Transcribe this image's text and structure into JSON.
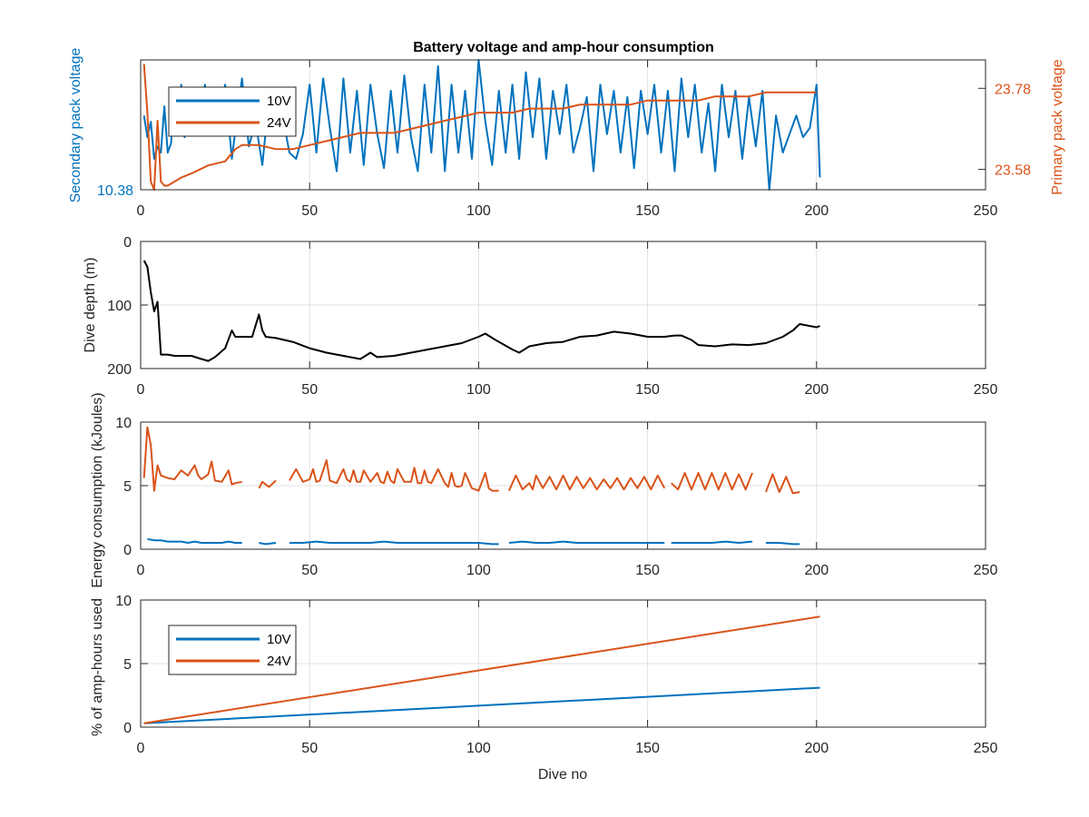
{
  "title": "Battery voltage and amp-hour consumption",
  "colors": {
    "series_10v": "#0072bd",
    "series_24v": "#d95319",
    "depth": "#000000",
    "axes": "#262626",
    "grid": "#e0e0e0"
  },
  "chart_data": [
    {
      "type": "line",
      "id": "voltage",
      "title": "Battery voltage and amp-hour consumption",
      "xlabel": "",
      "ylabel": "Secondary pack voltage",
      "ylabel_right": "Primary pack voltage",
      "xlim": [
        0,
        250
      ],
      "xticks": [
        0,
        50,
        100,
        150,
        200,
        250
      ],
      "ylim_left": [
        10.38,
        10.8
      ],
      "yticks_left": [
        10.38
      ],
      "ylim_right": [
        23.53,
        23.85
      ],
      "yticks_right": [
        23.58,
        23.78
      ],
      "grid": true,
      "legend": {
        "position": "top-left",
        "entries": [
          "10V",
          "24V"
        ]
      },
      "series": [
        {
          "name": "10V",
          "axis": "left",
          "color": "#0072bd",
          "x": [
            1,
            2,
            3,
            4,
            5,
            6,
            7,
            8,
            9,
            10,
            11,
            12,
            13,
            14,
            15,
            17,
            19,
            21,
            23,
            25,
            27,
            29,
            30,
            32,
            34,
            36,
            38,
            40,
            42,
            44,
            46,
            48,
            50,
            52,
            54,
            56,
            58,
            60,
            62,
            64,
            66,
            68,
            70,
            72,
            74,
            76,
            78,
            80,
            82,
            84,
            86,
            88,
            90,
            92,
            94,
            96,
            98,
            100,
            102,
            104,
            106,
            108,
            110,
            112,
            114,
            116,
            118,
            120,
            122,
            124,
            126,
            128,
            130,
            132,
            134,
            136,
            138,
            140,
            142,
            144,
            146,
            148,
            150,
            152,
            154,
            156,
            158,
            160,
            162,
            164,
            166,
            168,
            170,
            172,
            174,
            176,
            178,
            180,
            182,
            184,
            186,
            188,
            190,
            192,
            194,
            196,
            198,
            200,
            201
          ],
          "y": [
            10.62,
            10.55,
            10.6,
            10.48,
            10.52,
            10.5,
            10.65,
            10.5,
            10.53,
            10.7,
            10.58,
            10.72,
            10.55,
            10.6,
            10.7,
            10.56,
            10.72,
            10.6,
            10.58,
            10.72,
            10.48,
            10.66,
            10.74,
            10.52,
            10.6,
            10.46,
            10.68,
            10.56,
            10.62,
            10.5,
            10.48,
            10.56,
            10.72,
            10.5,
            10.74,
            10.58,
            10.44,
            10.74,
            10.5,
            10.7,
            10.46,
            10.72,
            10.56,
            10.45,
            10.7,
            10.5,
            10.75,
            10.55,
            10.44,
            10.72,
            10.5,
            10.78,
            10.44,
            10.72,
            10.5,
            10.7,
            10.48,
            10.8,
            10.6,
            10.46,
            10.7,
            10.5,
            10.72,
            10.48,
            10.76,
            10.55,
            10.74,
            10.48,
            10.7,
            10.56,
            10.72,
            10.5,
            10.58,
            10.68,
            10.44,
            10.72,
            10.56,
            10.7,
            10.5,
            10.68,
            10.45,
            10.7,
            10.56,
            10.72,
            10.5,
            10.7,
            10.44,
            10.74,
            10.55,
            10.72,
            10.5,
            10.66,
            10.44,
            10.72,
            10.55,
            10.7,
            10.48,
            10.68,
            10.52,
            10.7,
            10.38,
            10.62,
            10.5,
            10.56,
            10.62,
            10.55,
            10.58,
            10.72,
            10.42
          ]
        },
        {
          "name": "24V",
          "axis": "right",
          "color": "#d95319",
          "x": [
            1,
            2,
            3,
            4,
            5,
            6,
            7,
            8,
            10,
            12,
            15,
            20,
            25,
            28,
            30,
            35,
            40,
            45,
            50,
            55,
            60,
            65,
            70,
            75,
            80,
            85,
            90,
            95,
            100,
            105,
            110,
            115,
            120,
            125,
            130,
            135,
            140,
            145,
            150,
            155,
            160,
            165,
            170,
            175,
            180,
            185,
            190,
            195,
            200
          ],
          "y": [
            23.84,
            23.72,
            23.55,
            23.53,
            23.7,
            23.55,
            23.54,
            23.54,
            23.55,
            23.56,
            23.57,
            23.59,
            23.6,
            23.63,
            23.64,
            23.64,
            23.63,
            23.63,
            23.64,
            23.65,
            23.66,
            23.67,
            23.67,
            23.67,
            23.68,
            23.69,
            23.7,
            23.71,
            23.72,
            23.72,
            23.72,
            23.73,
            23.73,
            23.73,
            23.74,
            23.74,
            23.74,
            23.74,
            23.75,
            23.75,
            23.75,
            23.75,
            23.76,
            23.76,
            23.76,
            23.77,
            23.77,
            23.77,
            23.77
          ]
        }
      ]
    },
    {
      "type": "line",
      "id": "depth",
      "xlabel": "",
      "ylabel": "Dive depth (m)",
      "xlim": [
        0,
        250
      ],
      "xticks": [
        0,
        50,
        100,
        150,
        200,
        250
      ],
      "ylim": [
        0,
        200
      ],
      "yticks": [
        0,
        100,
        200
      ],
      "y_reversed": true,
      "grid": true,
      "series": [
        {
          "color": "#000000",
          "x": [
            1,
            2,
            3,
            4,
            5,
            6,
            8,
            10,
            12,
            15,
            18,
            20,
            22,
            25,
            27,
            28,
            30,
            33,
            35,
            36,
            37,
            40,
            45,
            50,
            55,
            60,
            65,
            68,
            70,
            75,
            80,
            85,
            90,
            95,
            100,
            102,
            105,
            110,
            112,
            115,
            120,
            125,
            130,
            135,
            140,
            145,
            150,
            155,
            158,
            160,
            163,
            165,
            170,
            175,
            180,
            185,
            190,
            193,
            195,
            200,
            201
          ],
          "y": [
            30,
            40,
            80,
            110,
            95,
            178,
            178,
            180,
            180,
            180,
            185,
            188,
            182,
            168,
            140,
            150,
            150,
            150,
            115,
            140,
            150,
            152,
            158,
            168,
            175,
            180,
            185,
            175,
            182,
            180,
            175,
            170,
            165,
            160,
            150,
            145,
            155,
            170,
            175,
            165,
            160,
            158,
            150,
            148,
            142,
            145,
            150,
            150,
            148,
            148,
            155,
            163,
            165,
            162,
            163,
            160,
            150,
            140,
            130,
            135,
            133
          ]
        }
      ]
    },
    {
      "type": "line",
      "id": "energy",
      "xlabel": "",
      "ylabel": "Energy consumption (kJoules)",
      "xlim": [
        0,
        250
      ],
      "xticks": [
        0,
        50,
        100,
        150,
        200,
        250
      ],
      "ylim": [
        0,
        10
      ],
      "yticks": [
        0,
        5,
        10
      ],
      "grid": true,
      "series": [
        {
          "color": "#d95319",
          "segments": [
            {
              "x": [
                1,
                2,
                3,
                4,
                5,
                6,
                8,
                10,
                12,
                14,
                16,
                17,
                18,
                20,
                21,
                22,
                24,
                26,
                27,
                28,
                30
              ],
              "y": [
                5.6,
                9.6,
                8.2,
                4.6,
                6.6,
                5.8,
                5.6,
                5.5,
                6.2,
                5.8,
                6.6,
                5.8,
                5.5,
                5.9,
                6.9,
                5.4,
                5.3,
                6.2,
                5.1,
                5.2,
                5.3
              ]
            },
            {
              "x": [
                35,
                36,
                38,
                40
              ],
              "y": [
                4.8,
                5.3,
                4.9,
                5.4
              ]
            },
            {
              "x": [
                44,
                46,
                48,
                50,
                51,
                52,
                53,
                54,
                55,
                56,
                58,
                60,
                61,
                62,
                63,
                64,
                65,
                66,
                68,
                70,
                71,
                72,
                73,
                74,
                75,
                76,
                78,
                80,
                81,
                82,
                83,
                84,
                85,
                86,
                88,
                90,
                91,
                92,
                93,
                94,
                95,
                96,
                98,
                100,
                102,
                103,
                104,
                106
              ],
              "y": [
                5.4,
                6.3,
                5.3,
                5.5,
                6.3,
                5.3,
                5.4,
                6.2,
                7.0,
                5.4,
                5.2,
                6.3,
                5.5,
                5.3,
                6.2,
                5.3,
                5.3,
                6.2,
                5.3,
                6.0,
                5.3,
                5.2,
                6.1,
                5.4,
                5.2,
                6.3,
                5.3,
                5.3,
                6.4,
                5.2,
                5.2,
                6.2,
                5.3,
                5.2,
                6.3,
                5.2,
                4.9,
                6.0,
                5.0,
                4.9,
                5.0,
                6.0,
                4.8,
                4.6,
                6.0,
                4.8,
                4.6,
                4.6
              ]
            },
            {
              "x": [
                109,
                111,
                113,
                115,
                116,
                117,
                119,
                121,
                123,
                125,
                127,
                129,
                131,
                133,
                135,
                137,
                139,
                141,
                143,
                145,
                147,
                149,
                151,
                153,
                155
              ],
              "y": [
                4.6,
                5.8,
                4.7,
                5.2,
                4.7,
                5.8,
                4.8,
                5.7,
                4.7,
                5.8,
                4.7,
                5.7,
                4.8,
                5.6,
                4.7,
                5.5,
                4.8,
                5.6,
                4.7,
                5.6,
                4.8,
                5.7,
                4.7,
                5.8,
                4.8
              ]
            },
            {
              "x": [
                157,
                159,
                161,
                163,
                165,
                167,
                169,
                171,
                173,
                175,
                177,
                179,
                181
              ],
              "y": [
                5.2,
                4.7,
                6.0,
                4.7,
                6.0,
                4.7,
                6.0,
                4.7,
                6.0,
                4.7,
                5.9,
                4.7,
                6.0
              ]
            },
            {
              "x": [
                185,
                187,
                189,
                191,
                193,
                195
              ],
              "y": [
                4.5,
                5.9,
                4.5,
                5.7,
                4.4,
                4.5
              ]
            }
          ]
        },
        {
          "color": "#0072bd",
          "segments": [
            {
              "x": [
                2,
                4,
                6,
                8,
                10,
                12,
                14,
                16,
                18,
                20,
                22,
                24,
                26,
                28,
                30
              ],
              "y": [
                0.8,
                0.7,
                0.7,
                0.6,
                0.6,
                0.6,
                0.5,
                0.6,
                0.5,
                0.5,
                0.5,
                0.5,
                0.6,
                0.5,
                0.5
              ]
            },
            {
              "x": [
                35,
                37,
                40
              ],
              "y": [
                0.5,
                0.4,
                0.5
              ]
            },
            {
              "x": [
                44,
                48,
                52,
                56,
                60,
                64,
                68,
                72,
                76,
                80,
                84,
                88,
                92,
                96,
                100,
                104,
                106
              ],
              "y": [
                0.5,
                0.5,
                0.6,
                0.5,
                0.5,
                0.5,
                0.5,
                0.6,
                0.5,
                0.5,
                0.5,
                0.5,
                0.5,
                0.5,
                0.5,
                0.4,
                0.4
              ]
            },
            {
              "x": [
                109,
                113,
                117,
                121,
                125,
                129,
                133,
                137,
                141,
                145,
                149,
                153,
                155
              ],
              "y": [
                0.5,
                0.6,
                0.5,
                0.5,
                0.6,
                0.5,
                0.5,
                0.5,
                0.5,
                0.5,
                0.5,
                0.5,
                0.5
              ]
            },
            {
              "x": [
                157,
                161,
                165,
                169,
                173,
                177,
                181
              ],
              "y": [
                0.5,
                0.5,
                0.5,
                0.5,
                0.6,
                0.5,
                0.6
              ]
            },
            {
              "x": [
                185,
                189,
                193,
                195
              ],
              "y": [
                0.5,
                0.5,
                0.4,
                0.4
              ]
            }
          ]
        }
      ]
    },
    {
      "type": "line",
      "id": "amphours",
      "xlabel": "Dive no",
      "ylabel": "% of amp-hours used",
      "xlim": [
        0,
        250
      ],
      "xticks": [
        0,
        50,
        100,
        150,
        200,
        250
      ],
      "ylim": [
        0,
        10
      ],
      "yticks": [
        0,
        5,
        10
      ],
      "grid": true,
      "legend": {
        "position": "top-left",
        "entries": [
          "10V",
          "24V"
        ]
      },
      "series": [
        {
          "name": "10V",
          "color": "#0072bd",
          "x": [
            1,
            201
          ],
          "y": [
            0.3,
            3.1
          ]
        },
        {
          "name": "24V",
          "color": "#d95319",
          "x": [
            1,
            201
          ],
          "y": [
            0.3,
            8.7
          ]
        }
      ]
    }
  ]
}
